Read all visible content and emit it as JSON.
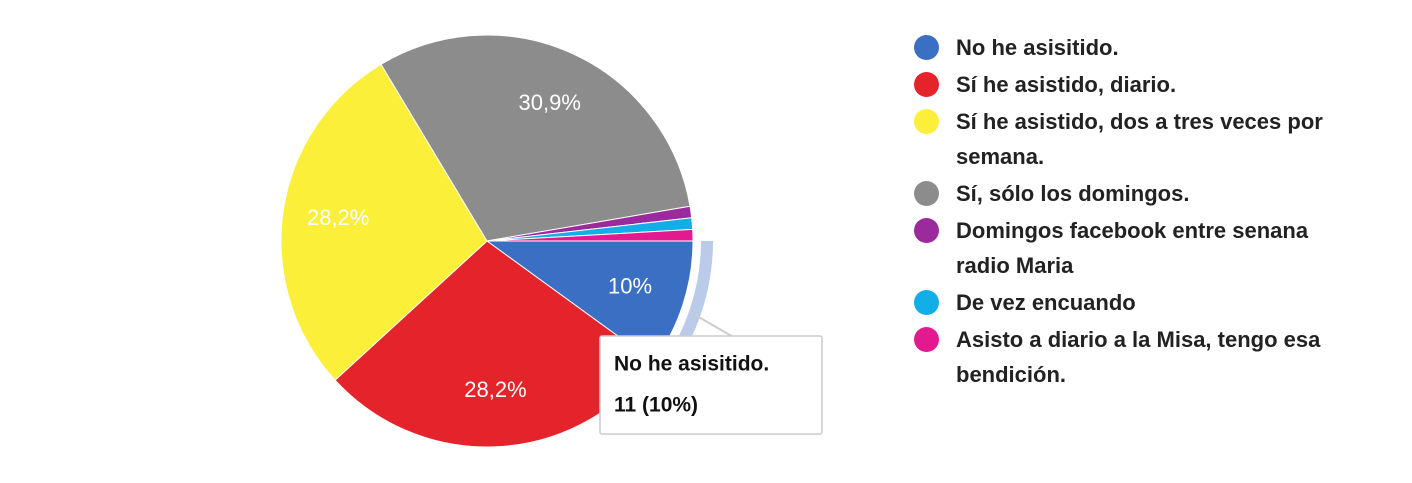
{
  "chart_data": {
    "type": "pie",
    "categories": [
      "No he asisitido.",
      "Sí he asistido, diario.",
      "Sí he asistido, dos a tres veces por semana.",
      "Sí, sólo los domingos.",
      "Domingos facebook entre senana radio Maria",
      "De vez encuando",
      "Asisto a diario a la Misa, tengo esa bendición."
    ],
    "values": [
      10,
      28.2,
      28.2,
      30.9,
      0.9,
      0.9,
      0.9
    ],
    "value_labels": [
      "10%",
      "28,2%",
      "28,2%",
      "30,9%",
      null,
      null,
      null
    ],
    "colors": [
      "#3a6fc4",
      "#e4232b",
      "#fbef3a",
      "#8c8c8c",
      "#9b2a9c",
      "#11aee8",
      "#e3198f"
    ],
    "legend": "right",
    "tooltip": {
      "title": "No he asisitido.",
      "text": "11 (10%)"
    }
  }
}
